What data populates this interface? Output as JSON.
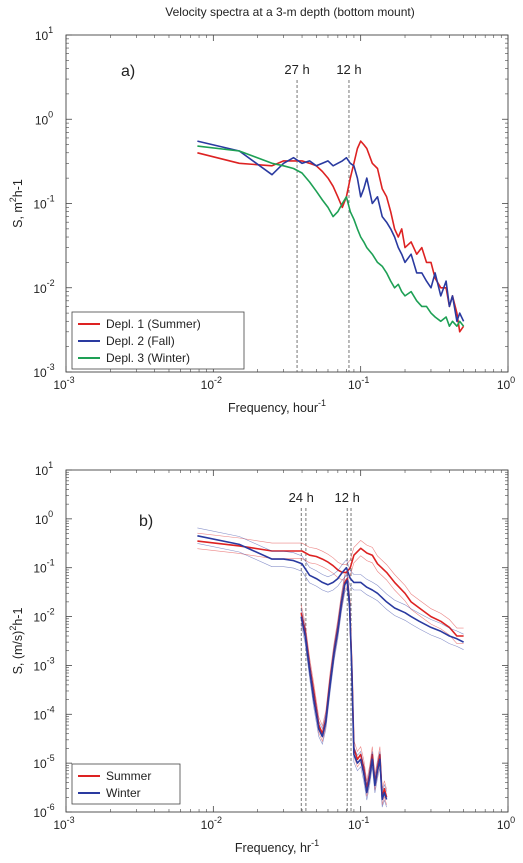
{
  "figure": {
    "title": "Velocity spectra at a 3-m depth (bottom mount)"
  },
  "chart_data": [
    {
      "type": "line",
      "panel_label": "a)",
      "x_scale": "log",
      "y_scale": "log",
      "xlim": [
        0.001,
        1
      ],
      "ylim": [
        0.001,
        10
      ],
      "xlabel": "Frequency, hour",
      "xlabel_sup": "-1",
      "ylabel_main": "S, m",
      "ylabel_sup": "2",
      "ylabel_tail": "h-1",
      "x_ticks": [
        {
          "value": 0.001,
          "base": "10",
          "exp": "-3"
        },
        {
          "value": 0.01,
          "base": "10",
          "exp": "-2"
        },
        {
          "value": 0.1,
          "base": "10",
          "exp": "-1"
        },
        {
          "value": 1,
          "base": "10",
          "exp": "0"
        }
      ],
      "y_ticks": [
        {
          "value": 0.001,
          "base": "10",
          "exp": "-3"
        },
        {
          "value": 0.01,
          "base": "10",
          "exp": "-2"
        },
        {
          "value": 0.1,
          "base": "10",
          "exp": "-1"
        },
        {
          "value": 1,
          "base": "10",
          "exp": "0"
        },
        {
          "value": 10,
          "base": "10",
          "exp": "1"
        }
      ],
      "vlines": [
        {
          "x": 0.037,
          "label": "27 h"
        },
        {
          "x": 0.0833,
          "label": "12 h"
        }
      ],
      "legend_position": "bottom-left",
      "series": [
        {
          "name": "Depl. 1 (Summer)",
          "color": "#dd2222",
          "x": [
            0.0078,
            0.015,
            0.025,
            0.03,
            0.035,
            0.04,
            0.045,
            0.05,
            0.055,
            0.06,
            0.065,
            0.07,
            0.075,
            0.08,
            0.085,
            0.09,
            0.095,
            0.1,
            0.105,
            0.11,
            0.12,
            0.13,
            0.14,
            0.15,
            0.16,
            0.17,
            0.18,
            0.19,
            0.2,
            0.22,
            0.24,
            0.26,
            0.28,
            0.3,
            0.32,
            0.35,
            0.38,
            0.4,
            0.42,
            0.45,
            0.47,
            0.5
          ],
          "y": [
            0.4,
            0.3,
            0.28,
            0.32,
            0.32,
            0.32,
            0.3,
            0.28,
            0.24,
            0.2,
            0.16,
            0.12,
            0.09,
            0.12,
            0.2,
            0.3,
            0.45,
            0.55,
            0.5,
            0.45,
            0.3,
            0.26,
            0.15,
            0.12,
            0.08,
            0.05,
            0.04,
            0.05,
            0.03,
            0.035,
            0.025,
            0.03,
            0.02,
            0.02,
            0.013,
            0.01,
            0.01,
            0.006,
            0.008,
            0.005,
            0.003,
            0.0035
          ]
        },
        {
          "name": "Depl. 2 (Fall)",
          "color": "#2a3aa0",
          "x": [
            0.0078,
            0.015,
            0.025,
            0.03,
            0.035,
            0.04,
            0.045,
            0.05,
            0.055,
            0.06,
            0.065,
            0.07,
            0.075,
            0.08,
            0.085,
            0.09,
            0.095,
            0.1,
            0.105,
            0.11,
            0.12,
            0.13,
            0.14,
            0.15,
            0.16,
            0.17,
            0.18,
            0.19,
            0.2,
            0.22,
            0.24,
            0.26,
            0.28,
            0.3,
            0.32,
            0.35,
            0.38,
            0.4,
            0.42,
            0.45,
            0.47,
            0.5
          ],
          "y": [
            0.55,
            0.42,
            0.22,
            0.3,
            0.35,
            0.3,
            0.32,
            0.28,
            0.3,
            0.32,
            0.28,
            0.3,
            0.32,
            0.35,
            0.3,
            0.28,
            0.2,
            0.12,
            0.15,
            0.2,
            0.1,
            0.12,
            0.07,
            0.06,
            0.05,
            0.04,
            0.03,
            0.025,
            0.02,
            0.025,
            0.015,
            0.015,
            0.012,
            0.01,
            0.015,
            0.008,
            0.012,
            0.006,
            0.008,
            0.004,
            0.005,
            0.004
          ]
        },
        {
          "name": "Depl. 3 (Winter)",
          "color": "#1ea055",
          "x": [
            0.0078,
            0.015,
            0.025,
            0.03,
            0.035,
            0.04,
            0.045,
            0.05,
            0.055,
            0.06,
            0.065,
            0.07,
            0.075,
            0.08,
            0.085,
            0.09,
            0.095,
            0.1,
            0.105,
            0.11,
            0.12,
            0.13,
            0.14,
            0.15,
            0.16,
            0.17,
            0.18,
            0.19,
            0.2,
            0.22,
            0.24,
            0.26,
            0.28,
            0.3,
            0.32,
            0.35,
            0.38,
            0.4,
            0.42,
            0.45,
            0.47,
            0.5
          ],
          "y": [
            0.48,
            0.42,
            0.3,
            0.28,
            0.26,
            0.23,
            0.18,
            0.14,
            0.11,
            0.09,
            0.07,
            0.08,
            0.1,
            0.12,
            0.08,
            0.065,
            0.05,
            0.04,
            0.035,
            0.03,
            0.025,
            0.02,
            0.018,
            0.015,
            0.012,
            0.01,
            0.011,
            0.009,
            0.008,
            0.009,
            0.007,
            0.006,
            0.006,
            0.005,
            0.0045,
            0.004,
            0.0045,
            0.0035,
            0.004,
            0.0035,
            0.004,
            0.0035
          ]
        }
      ]
    },
    {
      "type": "line",
      "panel_label": "b)",
      "x_scale": "log",
      "y_scale": "log",
      "xlim": [
        0.001,
        1
      ],
      "ylim": [
        1e-06,
        10
      ],
      "xlabel": "Frequency, hr",
      "xlabel_sup": "-1",
      "ylabel_main": "S, (m/s)",
      "ylabel_sup": "2",
      "ylabel_tail": "h-1",
      "x_ticks": [
        {
          "value": 0.001,
          "base": "10",
          "exp": "-3"
        },
        {
          "value": 0.01,
          "base": "10",
          "exp": "-2"
        },
        {
          "value": 0.1,
          "base": "10",
          "exp": "-1"
        },
        {
          "value": 1,
          "base": "10",
          "exp": "0"
        }
      ],
      "y_ticks": [
        {
          "value": 1e-06,
          "base": "10",
          "exp": "-6"
        },
        {
          "value": 1e-05,
          "base": "10",
          "exp": "-5"
        },
        {
          "value": 0.0001,
          "base": "10",
          "exp": "-4"
        },
        {
          "value": 0.001,
          "base": "10",
          "exp": "-3"
        },
        {
          "value": 0.01,
          "base": "10",
          "exp": "-2"
        },
        {
          "value": 0.1,
          "base": "10",
          "exp": "-1"
        },
        {
          "value": 1,
          "base": "10",
          "exp": "0"
        },
        {
          "value": 10,
          "base": "10",
          "exp": "1"
        }
      ],
      "vlines": [
        {
          "x": 0.0395,
          "label": "24 h"
        },
        {
          "x": 0.0425,
          "label": ""
        },
        {
          "x": 0.081,
          "label": "12 h"
        },
        {
          "x": 0.086,
          "label": ""
        }
      ],
      "legend_position": "bottom-left",
      "series": [
        {
          "name": "Summer",
          "color": "#dd2222",
          "x": [
            0.0078,
            0.015,
            0.025,
            0.03,
            0.035,
            0.04,
            0.045,
            0.05,
            0.055,
            0.06,
            0.065,
            0.07,
            0.075,
            0.08,
            0.085,
            0.09,
            0.1,
            0.11,
            0.12,
            0.13,
            0.15,
            0.17,
            0.2,
            0.22,
            0.25,
            0.3,
            0.35,
            0.4,
            0.45,
            0.5
          ],
          "y": [
            0.35,
            0.28,
            0.22,
            0.22,
            0.22,
            0.22,
            0.18,
            0.17,
            0.15,
            0.13,
            0.11,
            0.09,
            0.08,
            0.08,
            0.1,
            0.18,
            0.25,
            0.2,
            0.18,
            0.12,
            0.08,
            0.05,
            0.03,
            0.02,
            0.015,
            0.01,
            0.008,
            0.006,
            0.004,
            0.004
          ],
          "band": true
        },
        {
          "name": "Winter",
          "color": "#2a3aa0",
          "x": [
            0.0078,
            0.015,
            0.025,
            0.03,
            0.035,
            0.04,
            0.045,
            0.05,
            0.055,
            0.06,
            0.065,
            0.07,
            0.075,
            0.08,
            0.085,
            0.09,
            0.1,
            0.11,
            0.12,
            0.13,
            0.15,
            0.17,
            0.2,
            0.22,
            0.25,
            0.3,
            0.35,
            0.4,
            0.45,
            0.5
          ],
          "y": [
            0.45,
            0.3,
            0.15,
            0.15,
            0.14,
            0.12,
            0.07,
            0.06,
            0.05,
            0.045,
            0.05,
            0.06,
            0.08,
            0.1,
            0.06,
            0.05,
            0.05,
            0.04,
            0.035,
            0.03,
            0.02,
            0.015,
            0.012,
            0.01,
            0.008,
            0.006,
            0.005,
            0.004,
            0.0035,
            0.003
          ],
          "band": true
        },
        {
          "name": "",
          "color": "#dd2222",
          "x": [
            0.0395,
            0.042,
            0.045,
            0.048,
            0.052,
            0.055,
            0.058,
            0.062,
            0.066,
            0.07,
            0.074,
            0.078,
            0.081,
            0.084,
            0.087,
            0.09,
            0.095,
            0.1,
            0.105,
            0.11,
            0.115,
            0.12,
            0.125,
            0.13,
            0.135,
            0.14,
            0.145,
            0.15
          ],
          "y": [
            0.012,
            0.005,
            0.001,
            0.0003,
            6e-05,
            4e-05,
            8e-05,
            0.0005,
            0.002,
            0.006,
            0.02,
            0.05,
            0.06,
            0.02,
            0.001,
            2e-05,
            1.2e-05,
            1.5e-05,
            8e-06,
            3e-06,
            6e-06,
            1.5e-05,
            4e-06,
            8e-06,
            1.5e-05,
            2e-06,
            3e-06,
            2e-06
          ],
          "band": true
        },
        {
          "name": "",
          "color": "#2a3aa0",
          "x": [
            0.0395,
            0.042,
            0.045,
            0.048,
            0.052,
            0.055,
            0.058,
            0.062,
            0.066,
            0.07,
            0.074,
            0.078,
            0.081,
            0.084,
            0.087,
            0.09,
            0.095,
            0.1,
            0.105,
            0.11,
            0.115,
            0.12,
            0.125,
            0.13,
            0.135,
            0.14,
            0.145,
            0.15
          ],
          "y": [
            0.01,
            0.004,
            0.0008,
            0.0002,
            5e-05,
            3.5e-05,
            7e-05,
            0.0004,
            0.0018,
            0.005,
            0.018,
            0.045,
            0.055,
            0.018,
            0.0008,
            1.5e-05,
            1e-05,
            1.2e-05,
            6e-06,
            2.5e-06,
            5e-06,
            1.2e-05,
            3.5e-06,
            7e-06,
            1.2e-05,
            1.8e-06,
            2.5e-06,
            1.8e-06
          ],
          "band": true
        }
      ]
    }
  ]
}
